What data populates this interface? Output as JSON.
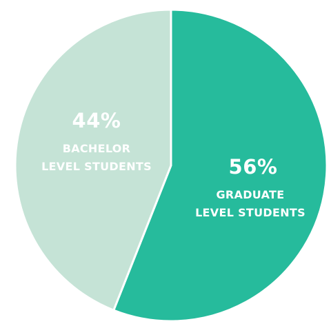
{
  "chart_data": {
    "type": "pie",
    "slices": [
      {
        "value": 56,
        "percent_label": "56%",
        "line1": "GRADUATE",
        "line2": "LEVEL STUDENTS",
        "color": "#26bb9c"
      },
      {
        "value": 44,
        "percent_label": "44%",
        "line1": "BACHELOR",
        "line2": "LEVEL STUDENTS",
        "color": "#c5e3d6"
      }
    ],
    "separator_color": "#ffffff"
  }
}
